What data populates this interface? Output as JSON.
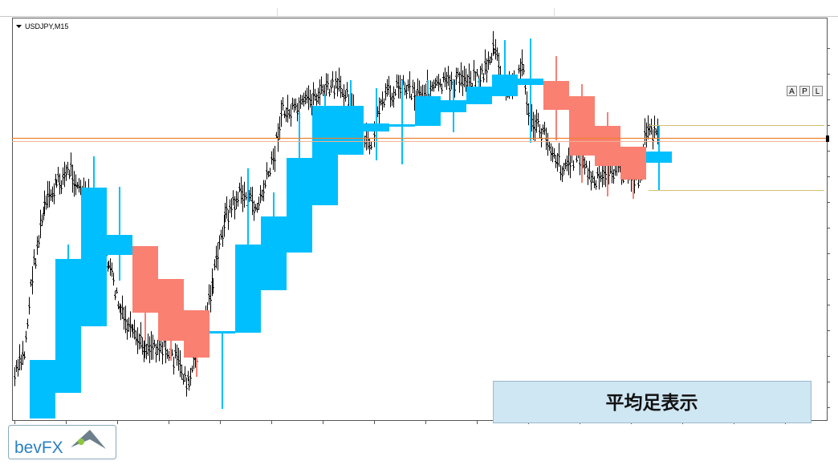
{
  "chart_window": {
    "symbol_label": "USDJPY,M15",
    "buttons": [
      "A",
      "P",
      "L"
    ]
  },
  "overlay_label": "平均足表示",
  "logo": {
    "text": "bevFX"
  }
}
